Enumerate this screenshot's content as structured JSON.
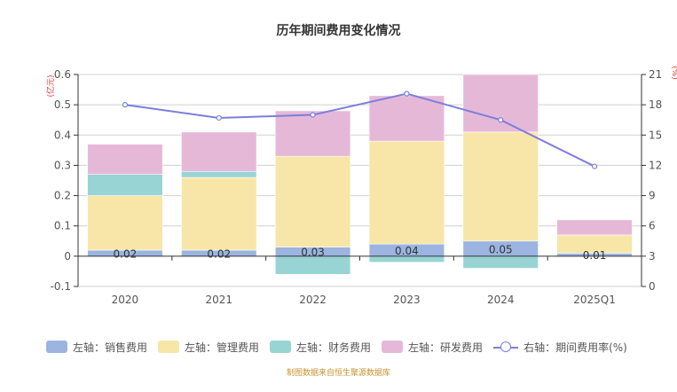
{
  "chart_data": {
    "type": "bar",
    "stacked": true,
    "title": "历年期间费用变化情况",
    "categories": [
      "2020",
      "2021",
      "2022",
      "2023",
      "2024",
      "2025Q1"
    ],
    "left_axis": {
      "label": "(亿元)",
      "ylim": [
        -0.1,
        0.6
      ],
      "ticks": [
        "-0.1",
        "0",
        "0.1",
        "0.2",
        "0.3",
        "0.4",
        "0.5",
        "0.6"
      ]
    },
    "right_axis": {
      "label": "(%)",
      "ylim": [
        0,
        21
      ],
      "ticks": [
        "0",
        "3",
        "6",
        "9",
        "12",
        "15",
        "18",
        "21"
      ]
    },
    "series": [
      {
        "name": "左轴：销售费用",
        "axis": "left",
        "kind": "bar",
        "color": "#9bb5e0",
        "values": [
          0.02,
          0.02,
          0.03,
          0.04,
          0.05,
          0.01
        ],
        "labels": [
          "0.02",
          "0.02",
          "0.03",
          "0.04",
          "0.05",
          "0.01"
        ]
      },
      {
        "name": "左轴：管理费用",
        "axis": "left",
        "kind": "bar",
        "color": "#f7e6a8",
        "values": [
          0.18,
          0.24,
          0.3,
          0.34,
          0.36,
          0.06
        ]
      },
      {
        "name": "左轴：财务费用",
        "axis": "left",
        "kind": "bar",
        "color": "#98d4d4",
        "values": [
          0.07,
          0.02,
          -0.06,
          -0.02,
          -0.04,
          0.0
        ]
      },
      {
        "name": "左轴：研发费用",
        "axis": "left",
        "kind": "bar",
        "color": "#e6b8d8",
        "values": [
          0.1,
          0.13,
          0.15,
          0.15,
          0.19,
          0.05
        ]
      },
      {
        "name": "右轴：期间费用率(%)",
        "axis": "right",
        "kind": "line",
        "color": "#7b7fdc",
        "values": [
          18.0,
          16.7,
          17.0,
          19.1,
          16.5,
          11.9
        ]
      }
    ],
    "grid": true,
    "legend_position": "bottom"
  },
  "source_note": "制图数据来自恒生聚源数据库"
}
